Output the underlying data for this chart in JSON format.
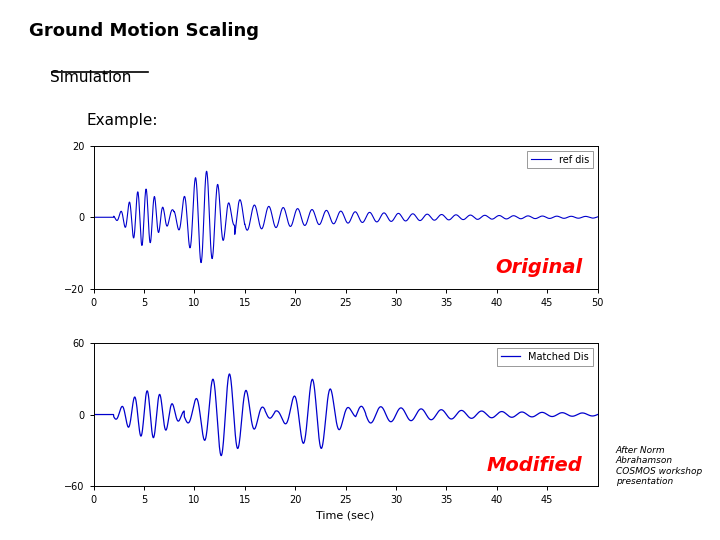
{
  "title": "Ground Motion Scaling",
  "subtitle": "Simulation",
  "example_label": "Example:",
  "background_color": "#ffffff",
  "top_plot": {
    "label": "ref dis",
    "ylim": [
      -20,
      20
    ],
    "yticks": [
      -20,
      0,
      20
    ],
    "xlim": [
      0,
      50
    ],
    "xticks": [
      0,
      5,
      10,
      15,
      20,
      25,
      30,
      35,
      40,
      45,
      50
    ],
    "annotation": "Original",
    "annotation_color": "red",
    "line_color": "#0000cc"
  },
  "bottom_plot": {
    "label": "Matched Dis",
    "xlabel": "Time (sec)",
    "ylim": [
      -60,
      60
    ],
    "yticks": [
      -60,
      0,
      60
    ],
    "xlim": [
      0,
      50
    ],
    "xticks": [
      0,
      5,
      10,
      15,
      20,
      25,
      30,
      35,
      40,
      45
    ],
    "annotation": "Modified",
    "annotation_color": "red",
    "line_color": "#0000cc"
  },
  "attribution": "After Norm\nAbrahamson\nCOSMOS workshop\npresentation",
  "attribution_color": "#000000",
  "title_fontsize": 13,
  "subtitle_fontsize": 11,
  "example_fontsize": 11,
  "annotation_fontsize": 14
}
